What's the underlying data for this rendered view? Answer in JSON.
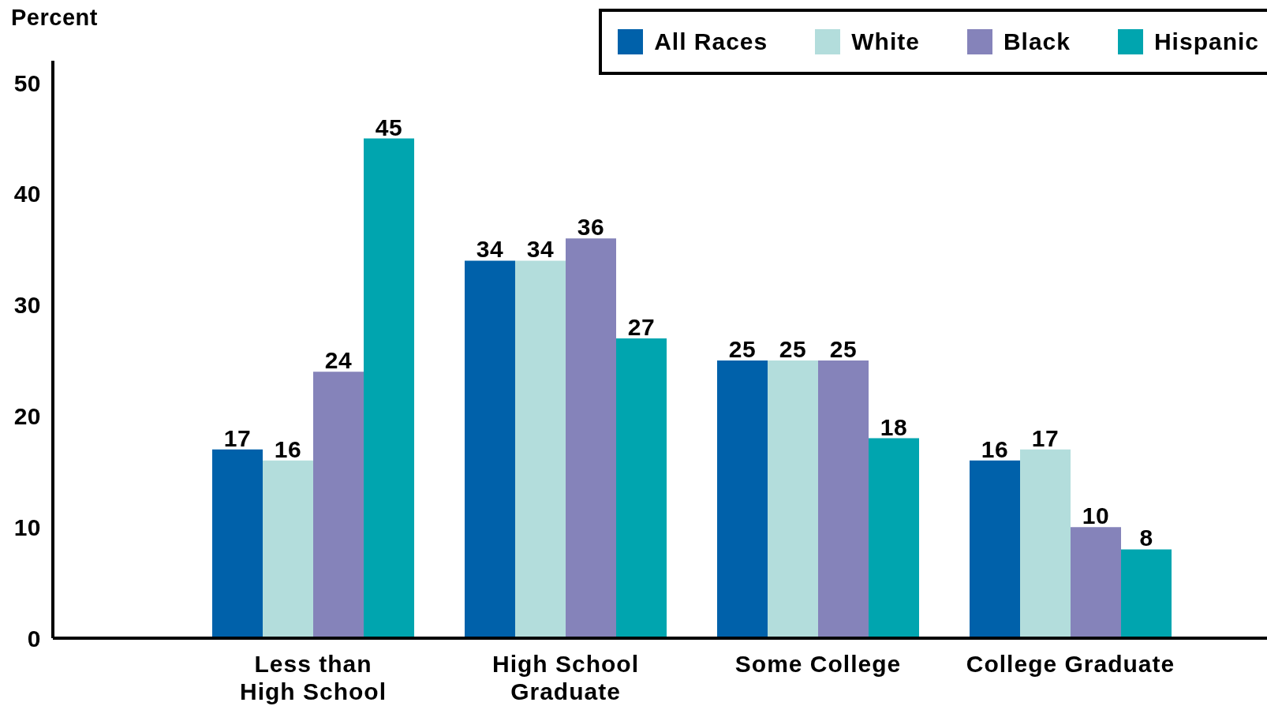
{
  "chart_data": {
    "type": "bar",
    "ylabel": "Percent",
    "categories": [
      "Less than\nHigh School",
      "High School\nGraduate",
      "Some College",
      "College Graduate"
    ],
    "series": [
      {
        "name": "All Races",
        "color": "#0061aa",
        "values": [
          17,
          34,
          25,
          16
        ]
      },
      {
        "name": "White",
        "color": "#b3dddc",
        "values": [
          16,
          34,
          25,
          17
        ]
      },
      {
        "name": "Black",
        "color": "#8583ba",
        "values": [
          24,
          36,
          25,
          10
        ]
      },
      {
        "name": "Hispanic",
        "color": "#00a5af",
        "values": [
          45,
          27,
          18,
          8
        ]
      }
    ],
    "ylim": [
      0,
      52
    ],
    "yticks": [
      0,
      10,
      20,
      30,
      40,
      50
    ],
    "data_labels": true,
    "legend": "top right"
  }
}
